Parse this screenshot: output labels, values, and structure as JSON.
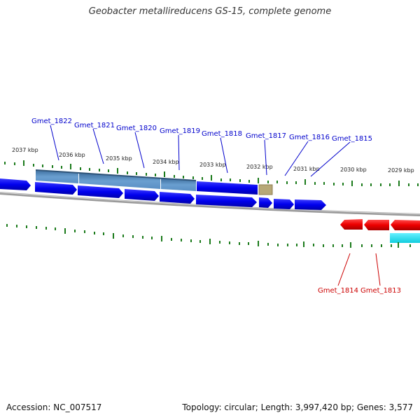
{
  "title": "Geobacter metallireducens GS-15, complete genome",
  "footer": {
    "accession": "Accession: NC_007517",
    "summary": "Topology: circular; Length: 3,997,420 bp; Genes: 3,577"
  },
  "scale_labels": [
    "2037 kbp",
    "2036 kbp",
    "2035 kbp",
    "2034 kbp",
    "2033 kbp",
    "2032 kbp",
    "2031 kbp",
    "2030 kbp",
    "2029 kbp"
  ],
  "forward_gene_labels": [
    "Gmet_1822",
    "Gmet_1821",
    "Gmet_1820",
    "Gmet_1819",
    "Gmet_1818",
    "Gmet_1817",
    "Gmet_1816",
    "Gmet_1815"
  ],
  "reverse_gene_labels": [
    "Gmet_1814",
    "Gmet_1813"
  ],
  "colors": {
    "forward_cds": "#0000ee",
    "reverse_cds": "#ee0000",
    "forward_label": "#0000cc",
    "reverse_label": "#cc0000",
    "backbone": "#888888",
    "tick": "#1a7a1a",
    "steel_feature": "#5a8fc4",
    "tan_feature": "#b7a877",
    "cyan_feature": "#22ddee"
  }
}
